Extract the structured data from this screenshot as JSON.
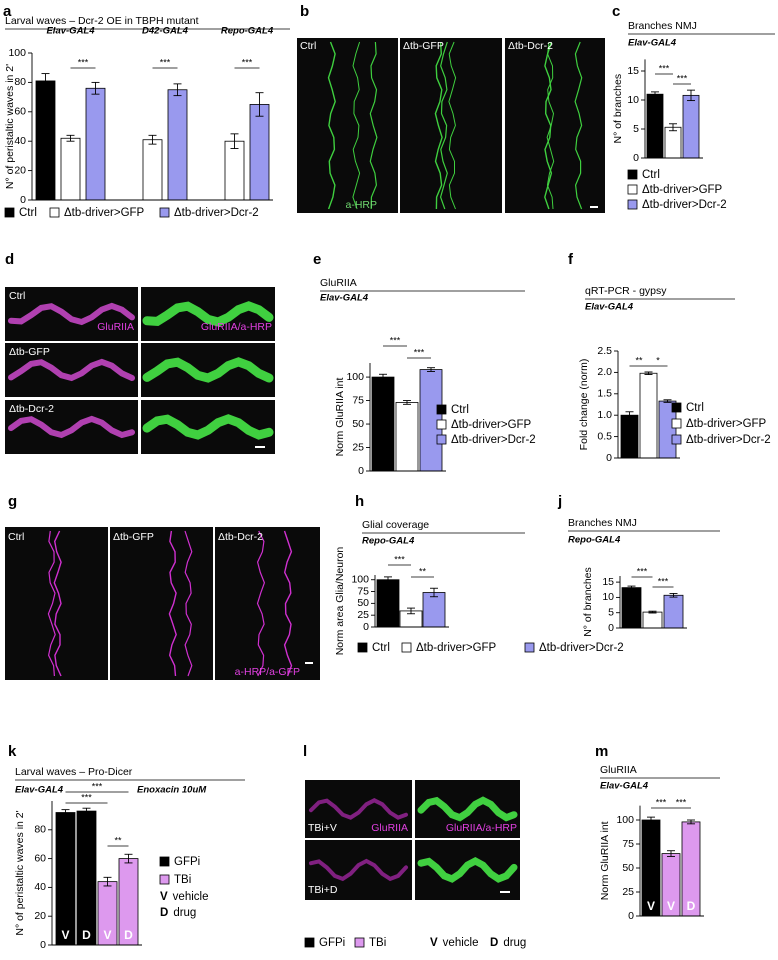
{
  "chart_data": [
    {
      "type": "bar",
      "panel": "a",
      "title": "Larval waves – Dcr-2 OE in TBPH mutant",
      "ylabel": "N° of peristaltic waves in 2'",
      "categories": [
        "Elav-GAL4",
        "D42-GAL4",
        "Repo-GAL4"
      ],
      "series": [
        {
          "name": "Ctrl",
          "color": "#000000",
          "values": [
            81,
            null,
            null
          ],
          "errors": [
            5,
            null,
            null
          ]
        },
        {
          "name": "Δtb-driver>GFP",
          "color": "#ffffff",
          "values": [
            42,
            41,
            40
          ],
          "errors": [
            2,
            3,
            5
          ]
        },
        {
          "name": "Δtb-driver>Dcr-2",
          "color": "#9999ee",
          "values": [
            76,
            75,
            65
          ],
          "errors": [
            4,
            4,
            8
          ]
        }
      ],
      "ylim": [
        0,
        100
      ],
      "yticks": [
        0,
        20,
        40,
        60,
        80,
        100
      ],
      "significance": [
        "***",
        "***",
        "***"
      ],
      "legend": "bottom"
    },
    {
      "type": "bar",
      "panel": "c",
      "title": "Branches NMJ",
      "subtitle": "Elav-GAL4",
      "ylabel": "N° of branches",
      "categories": [
        null
      ],
      "series": [
        {
          "name": "Ctrl",
          "color": "#000000",
          "values": [
            11
          ],
          "errors": [
            0.4
          ]
        },
        {
          "name": "Δtb-driver>GFP",
          "color": "#ffffff",
          "values": [
            5.3
          ],
          "errors": [
            0.6
          ]
        },
        {
          "name": "Δtb-driver>Dcr-2",
          "color": "#9999ee",
          "values": [
            10.8
          ],
          "errors": [
            0.9
          ]
        }
      ],
      "ylim": [
        0,
        17
      ],
      "yticks": [
        0,
        5,
        10,
        15
      ],
      "significance": [
        "***",
        "***"
      ],
      "legend": "right"
    },
    {
      "type": "bar",
      "panel": "e",
      "title": "GluRIIA",
      "subtitle": "Elav-GAL4",
      "ylabel": "Norm GluRIIA int",
      "categories": [
        null
      ],
      "series": [
        {
          "name": "Ctrl",
          "color": "#000000",
          "values": [
            100
          ],
          "errors": [
            3
          ]
        },
        {
          "name": "Δtb-driver>GFP",
          "color": "#ffffff",
          "values": [
            73
          ],
          "errors": [
            2
          ]
        },
        {
          "name": "Δtb-driver>Dcr-2",
          "color": "#9999ee",
          "values": [
            108
          ],
          "errors": [
            2
          ]
        }
      ],
      "ylim": [
        0,
        115
      ],
      "yticks": [
        0,
        25,
        50,
        75,
        100
      ],
      "significance": [
        "***",
        "***"
      ],
      "legend": "right"
    },
    {
      "type": "bar",
      "panel": "f",
      "title": "qRT-PCR - gypsy",
      "subtitle": "Elav-GAL4",
      "ylabel": "Fold change (norm)",
      "categories": [
        null
      ],
      "series": [
        {
          "name": "Ctrl",
          "color": "#000000",
          "values": [
            1.0
          ],
          "errors": [
            0.08
          ]
        },
        {
          "name": "Δtb-driver>GFP",
          "color": "#ffffff",
          "values": [
            1.98
          ],
          "errors": [
            0.03
          ]
        },
        {
          "name": "Δtb-driver>Dcr-2",
          "color": "#9999ee",
          "values": [
            1.33
          ],
          "errors": [
            0.03
          ]
        }
      ],
      "ylim": [
        0,
        2.5
      ],
      "yticks": [
        0,
        0.5,
        {
          "value": 1,
          "label": "1.0"
        },
        1.5,
        {
          "value": 2,
          "label": "2.0"
        },
        2.5
      ],
      "significance": [
        "**",
        "*"
      ],
      "legend": "right"
    },
    {
      "type": "bar",
      "panel": "h",
      "title": "Glial coverage",
      "subtitle": "Repo-GAL4",
      "ylabel": "Norm area Glia/Neuron",
      "categories": [
        null
      ],
      "series": [
        {
          "name": "Ctrl",
          "color": "#000000",
          "values": [
            100
          ],
          "errors": [
            6
          ]
        },
        {
          "name": "Δtb-driver>GFP",
          "color": "#ffffff",
          "values": [
            34
          ],
          "errors": [
            6
          ]
        },
        {
          "name": "Δtb-driver>Dcr-2",
          "color": "#9999ee",
          "values": [
            73
          ],
          "errors": [
            9
          ]
        }
      ],
      "ylim": [
        0,
        110
      ],
      "yticks": [
        0,
        25,
        50,
        75,
        100
      ],
      "significance": [
        "***",
        "**"
      ],
      "legend": "bottom"
    },
    {
      "type": "bar",
      "panel": "j",
      "title": "Branches NMJ",
      "subtitle": "Repo-GAL4",
      "ylabel": "N° of branches",
      "categories": [
        null
      ],
      "series": [
        {
          "color": "#000000",
          "values": [
            13.2
          ],
          "errors": [
            0.5
          ]
        },
        {
          "color": "#ffffff",
          "values": [
            5.2
          ],
          "errors": [
            0.3
          ]
        },
        {
          "color": "#9999ee",
          "values": [
            10.7
          ],
          "errors": [
            0.6
          ]
        }
      ],
      "ylim": [
        0,
        17
      ],
      "yticks": [
        0,
        5,
        10,
        15
      ],
      "significance": [
        "***",
        "***"
      ]
    },
    {
      "type": "bar",
      "panel": "k",
      "title": "Larval waves – Pro-Dicer",
      "subtitle": "Elav-GAL4",
      "condition": "Enoxacin 10uM",
      "ylabel": "N° of peristaltic waves in 2'",
      "categories": [
        null,
        null,
        null,
        null
      ],
      "series": [
        {
          "name": "GFPi",
          "color": "#000000",
          "values": [
            92,
            93,
            null,
            null
          ],
          "errors": [
            2,
            2,
            null,
            null
          ],
          "bar_labels": [
            "V",
            "D",
            null,
            null
          ]
        },
        {
          "name": "TBi",
          "color": "#dd99ee",
          "values": [
            null,
            null,
            44,
            60
          ],
          "errors": [
            null,
            null,
            3,
            3
          ],
          "bar_labels": [
            null,
            null,
            "V",
            "D"
          ]
        }
      ],
      "ylim": [
        0,
        100
      ],
      "yticks": [
        0,
        20,
        40,
        60,
        80
      ],
      "significance": [
        "***",
        "***",
        "**"
      ],
      "legend": "right",
      "legend_notes": [
        {
          "key": "V",
          "text": "vehicle"
        },
        {
          "key": "D",
          "text": "drug"
        }
      ]
    },
    {
      "type": "bar",
      "panel": "m",
      "title": "GluRIIA",
      "subtitle": "Elav-GAL4",
      "ylabel": "Norm GluRIIA int",
      "categories": [
        null,
        null,
        null
      ],
      "series": [
        {
          "name": "GFPi",
          "color": "#000000",
          "values": [
            100,
            null,
            null
          ],
          "errors": [
            3,
            null,
            null
          ],
          "bar_labels": [
            "V",
            null,
            null
          ]
        },
        {
          "name": "TBi",
          "color": "#dd99ee",
          "values": [
            null,
            65,
            98
          ],
          "errors": [
            null,
            3,
            2
          ],
          "bar_labels": [
            null,
            "V",
            "D"
          ]
        }
      ],
      "ylim": [
        0,
        115
      ],
      "yticks": [
        0,
        25,
        50,
        75,
        100
      ],
      "significance": [
        "***",
        "***"
      ],
      "legend": "bottom",
      "legend_notes": [
        {
          "key": "V",
          "text": "vehicle"
        },
        {
          "key": "D",
          "text": "drug"
        }
      ]
    }
  ],
  "images": [
    {
      "panel": "b",
      "labels": [
        "Ctrl",
        "Δtb-GFP",
        "Δtb-Dcr-2"
      ],
      "stain": "a-HRP"
    },
    {
      "panel": "d",
      "labels": [
        "Ctrl",
        "Δtb-GFP",
        "Δtb-Dcr-2"
      ],
      "channels": [
        "GluRIIA",
        "GluRIIA/a-HRP"
      ]
    },
    {
      "panel": "g",
      "labels": [
        "Ctrl",
        "Δtb-GFP",
        "Δtb-Dcr-2"
      ],
      "stain": "a-HRP/a-GFP"
    },
    {
      "panel": "l",
      "labels": [
        "TBi+V",
        "TBi+D"
      ],
      "channels": [
        "GluRIIA",
        "GluRIIA/a-HRP"
      ]
    }
  ]
}
